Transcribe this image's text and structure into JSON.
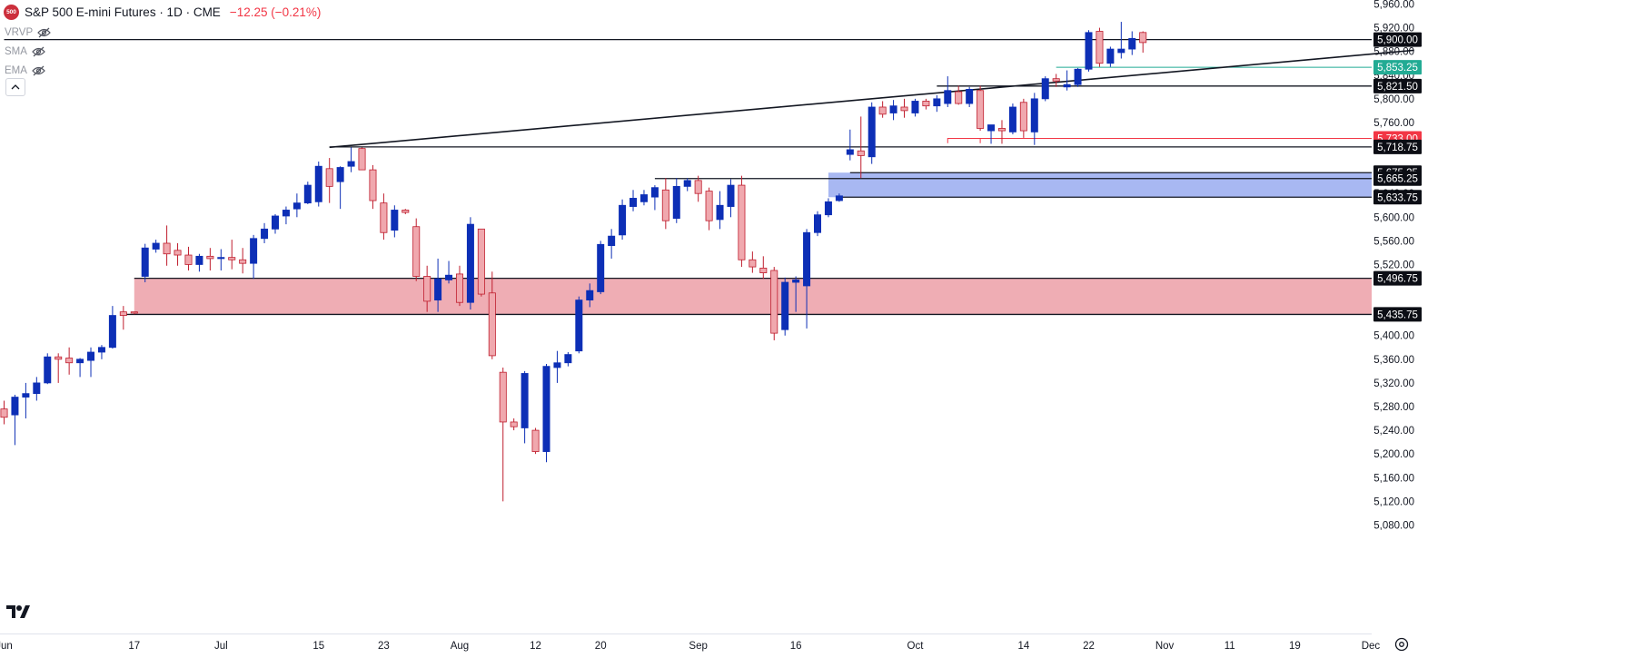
{
  "header": {
    "logo_text": "500",
    "title": "S&P 500 E-mini Futures · 1D · CME",
    "change": "−12.25 (−0.21%)"
  },
  "indicators": [
    {
      "label": "VRVP",
      "icon": "eye-off-icon"
    },
    {
      "label": "SMA",
      "icon": "eye-off-icon"
    },
    {
      "label": "EMA",
      "icon": "eye-off-icon"
    }
  ],
  "colors": {
    "up": "#0d2fb6",
    "down": "#f0a8ae",
    "down_border": "#bf1e2e",
    "resistance_zone": "#efadb4",
    "support_zone": "#a8b8f2",
    "last_price": "#22ab94",
    "red_level": "#f23645"
  },
  "chart_data": {
    "type": "candlestick",
    "instrument": "S&P 500 E-mini Futures",
    "timeframe": "1D",
    "exchange": "CME",
    "ylim": [
      5060,
      5980
    ],
    "y_ticks": [
      {
        "v": 5960,
        "label": "5,960.00"
      },
      {
        "v": 5920,
        "label": "5,920.00"
      },
      {
        "v": 5880,
        "label": "5,880.00"
      },
      {
        "v": 5840,
        "label": "5,840.00"
      },
      {
        "v": 5800,
        "label": "5,800.00"
      },
      {
        "v": 5760,
        "label": "5,760.00"
      },
      {
        "v": 5640,
        "label": "5,640.00"
      },
      {
        "v": 5600,
        "label": "5,600.00"
      },
      {
        "v": 5560,
        "label": "5,560.00"
      },
      {
        "v": 5520,
        "label": "5,520.00"
      },
      {
        "v": 5400,
        "label": "5,400.00"
      },
      {
        "v": 5360,
        "label": "5,360.00"
      },
      {
        "v": 5320,
        "label": "5,320.00"
      },
      {
        "v": 5280,
        "label": "5,280.00"
      },
      {
        "v": 5240,
        "label": "5,240.00"
      },
      {
        "v": 5200,
        "label": "5,200.00"
      },
      {
        "v": 5160,
        "label": "5,160.00"
      },
      {
        "v": 5120,
        "label": "5,120.00"
      },
      {
        "v": 5080,
        "label": "5,080.00"
      }
    ],
    "x_ticks": [
      {
        "i": 0,
        "label": "Jun"
      },
      {
        "i": 12,
        "label": "17"
      },
      {
        "i": 20,
        "label": "Jul"
      },
      {
        "i": 29,
        "label": "15"
      },
      {
        "i": 35,
        "label": "23"
      },
      {
        "i": 42,
        "label": "Aug"
      },
      {
        "i": 49,
        "label": "12"
      },
      {
        "i": 55,
        "label": "20"
      },
      {
        "i": 64,
        "label": "Sep"
      },
      {
        "i": 73,
        "label": "16"
      },
      {
        "i": 84,
        "label": "Oct"
      },
      {
        "i": 94,
        "label": "14"
      },
      {
        "i": 100,
        "label": "22"
      },
      {
        "i": 107,
        "label": "Nov"
      },
      {
        "i": 113,
        "label": "11"
      },
      {
        "i": 119,
        "label": "19"
      },
      {
        "i": 126,
        "label": "Dec"
      }
    ],
    "candles": [
      {
        "o": 5276,
        "h": 5290,
        "l": 5250,
        "c": 5262
      },
      {
        "o": 5266,
        "h": 5300,
        "l": 5215,
        "c": 5296
      },
      {
        "o": 5296,
        "h": 5320,
        "l": 5260,
        "c": 5302
      },
      {
        "o": 5302,
        "h": 5330,
        "l": 5290,
        "c": 5320
      },
      {
        "o": 5320,
        "h": 5370,
        "l": 5318,
        "c": 5364
      },
      {
        "o": 5364,
        "h": 5370,
        "l": 5320,
        "c": 5360
      },
      {
        "o": 5362,
        "h": 5380,
        "l": 5334,
        "c": 5354
      },
      {
        "o": 5354,
        "h": 5362,
        "l": 5330,
        "c": 5360
      },
      {
        "o": 5358,
        "h": 5380,
        "l": 5330,
        "c": 5372
      },
      {
        "o": 5372,
        "h": 5384,
        "l": 5360,
        "c": 5380
      },
      {
        "o": 5380,
        "h": 5450,
        "l": 5378,
        "c": 5434
      },
      {
        "o": 5440,
        "h": 5450,
        "l": 5410,
        "c": 5434
      },
      {
        "o": 5440,
        "h": 5440,
        "l": 5436,
        "c": 5438
      },
      {
        "o": 5500,
        "h": 5555,
        "l": 5490,
        "c": 5548
      },
      {
        "o": 5546,
        "h": 5562,
        "l": 5540,
        "c": 5556
      },
      {
        "o": 5556,
        "h": 5586,
        "l": 5518,
        "c": 5538
      },
      {
        "o": 5544,
        "h": 5556,
        "l": 5518,
        "c": 5536
      },
      {
        "o": 5536,
        "h": 5550,
        "l": 5510,
        "c": 5520
      },
      {
        "o": 5520,
        "h": 5538,
        "l": 5508,
        "c": 5534
      },
      {
        "o": 5534,
        "h": 5548,
        "l": 5510,
        "c": 5530
      },
      {
        "o": 5530,
        "h": 5546,
        "l": 5510,
        "c": 5532
      },
      {
        "o": 5532,
        "h": 5562,
        "l": 5512,
        "c": 5528
      },
      {
        "o": 5528,
        "h": 5548,
        "l": 5505,
        "c": 5522
      },
      {
        "o": 5522,
        "h": 5570,
        "l": 5496,
        "c": 5564
      },
      {
        "o": 5564,
        "h": 5590,
        "l": 5556,
        "c": 5580
      },
      {
        "o": 5580,
        "h": 5605,
        "l": 5572,
        "c": 5602
      },
      {
        "o": 5602,
        "h": 5618,
        "l": 5588,
        "c": 5612
      },
      {
        "o": 5614,
        "h": 5640,
        "l": 5600,
        "c": 5624
      },
      {
        "o": 5624,
        "h": 5660,
        "l": 5622,
        "c": 5654
      },
      {
        "o": 5626,
        "h": 5694,
        "l": 5618,
        "c": 5686
      },
      {
        "o": 5682,
        "h": 5700,
        "l": 5624,
        "c": 5652
      },
      {
        "o": 5660,
        "h": 5686,
        "l": 5614,
        "c": 5684
      },
      {
        "o": 5686,
        "h": 5718,
        "l": 5676,
        "c": 5694
      },
      {
        "o": 5716,
        "h": 5718,
        "l": 5680,
        "c": 5680
      },
      {
        "o": 5680,
        "h": 5688,
        "l": 5614,
        "c": 5628
      },
      {
        "o": 5624,
        "h": 5640,
        "l": 5562,
        "c": 5574
      },
      {
        "o": 5578,
        "h": 5620,
        "l": 5566,
        "c": 5612
      },
      {
        "o": 5612,
        "h": 5614,
        "l": 5605,
        "c": 5608
      },
      {
        "o": 5584,
        "h": 5598,
        "l": 5492,
        "c": 5500
      },
      {
        "o": 5500,
        "h": 5518,
        "l": 5440,
        "c": 5458
      },
      {
        "o": 5460,
        "h": 5530,
        "l": 5440,
        "c": 5496
      },
      {
        "o": 5494,
        "h": 5526,
        "l": 5488,
        "c": 5502
      },
      {
        "o": 5504,
        "h": 5518,
        "l": 5450,
        "c": 5456
      },
      {
        "o": 5456,
        "h": 5600,
        "l": 5444,
        "c": 5588
      },
      {
        "o": 5580,
        "h": 5580,
        "l": 5466,
        "c": 5470
      },
      {
        "o": 5472,
        "h": 5508,
        "l": 5360,
        "c": 5366
      },
      {
        "o": 5338,
        "h": 5346,
        "l": 5120,
        "c": 5254
      },
      {
        "o": 5254,
        "h": 5260,
        "l": 5240,
        "c": 5246
      },
      {
        "o": 5244,
        "h": 5340,
        "l": 5218,
        "c": 5336
      },
      {
        "o": 5240,
        "h": 5244,
        "l": 5200,
        "c": 5204
      },
      {
        "o": 5204,
        "h": 5352,
        "l": 5186,
        "c": 5348
      },
      {
        "o": 5346,
        "h": 5374,
        "l": 5320,
        "c": 5354
      },
      {
        "o": 5354,
        "h": 5372,
        "l": 5348,
        "c": 5368
      },
      {
        "o": 5374,
        "h": 5466,
        "l": 5370,
        "c": 5460
      },
      {
        "o": 5460,
        "h": 5488,
        "l": 5448,
        "c": 5476
      },
      {
        "o": 5474,
        "h": 5560,
        "l": 5470,
        "c": 5554
      },
      {
        "o": 5552,
        "h": 5580,
        "l": 5530,
        "c": 5568
      },
      {
        "o": 5570,
        "h": 5630,
        "l": 5562,
        "c": 5620
      },
      {
        "o": 5618,
        "h": 5646,
        "l": 5610,
        "c": 5632
      },
      {
        "o": 5626,
        "h": 5646,
        "l": 5620,
        "c": 5638
      },
      {
        "o": 5634,
        "h": 5654,
        "l": 5612,
        "c": 5650
      },
      {
        "o": 5646,
        "h": 5666,
        "l": 5580,
        "c": 5594
      },
      {
        "o": 5598,
        "h": 5666,
        "l": 5590,
        "c": 5652
      },
      {
        "o": 5652,
        "h": 5666,
        "l": 5644,
        "c": 5662
      },
      {
        "o": 5662,
        "h": 5670,
        "l": 5626,
        "c": 5640
      },
      {
        "o": 5644,
        "h": 5650,
        "l": 5578,
        "c": 5594
      },
      {
        "o": 5596,
        "h": 5644,
        "l": 5580,
        "c": 5620
      },
      {
        "o": 5618,
        "h": 5664,
        "l": 5600,
        "c": 5654
      },
      {
        "o": 5654,
        "h": 5670,
        "l": 5516,
        "c": 5528
      },
      {
        "o": 5528,
        "h": 5542,
        "l": 5506,
        "c": 5516
      },
      {
        "o": 5514,
        "h": 5534,
        "l": 5496,
        "c": 5506
      },
      {
        "o": 5510,
        "h": 5516,
        "l": 5392,
        "c": 5404
      },
      {
        "o": 5410,
        "h": 5498,
        "l": 5400,
        "c": 5490
      },
      {
        "o": 5490,
        "h": 5500,
        "l": 5440,
        "c": 5494
      },
      {
        "o": 5484,
        "h": 5580,
        "l": 5412,
        "c": 5574
      },
      {
        "o": 5574,
        "h": 5610,
        "l": 5568,
        "c": 5604
      },
      {
        "o": 5604,
        "h": 5632,
        "l": 5600,
        "c": 5626
      },
      {
        "o": 5628,
        "h": 5640,
        "l": 5626,
        "c": 5636
      },
      {
        "o": 5706,
        "h": 5748,
        "l": 5696,
        "c": 5714
      },
      {
        "o": 5712,
        "h": 5770,
        "l": 5666,
        "c": 5704
      },
      {
        "o": 5702,
        "h": 5794,
        "l": 5690,
        "c": 5786
      },
      {
        "o": 5786,
        "h": 5796,
        "l": 5768,
        "c": 5774
      },
      {
        "o": 5776,
        "h": 5798,
        "l": 5764,
        "c": 5788
      },
      {
        "o": 5786,
        "h": 5800,
        "l": 5768,
        "c": 5780
      },
      {
        "o": 5776,
        "h": 5800,
        "l": 5770,
        "c": 5796
      },
      {
        "o": 5796,
        "h": 5800,
        "l": 5782,
        "c": 5788
      },
      {
        "o": 5788,
        "h": 5806,
        "l": 5778,
        "c": 5800
      },
      {
        "o": 5792,
        "h": 5838,
        "l": 5786,
        "c": 5814
      },
      {
        "o": 5812,
        "h": 5822,
        "l": 5790,
        "c": 5792
      },
      {
        "o": 5792,
        "h": 5820,
        "l": 5786,
        "c": 5816
      },
      {
        "o": 5814,
        "h": 5822,
        "l": 5746,
        "c": 5750
      },
      {
        "o": 5746,
        "h": 5756,
        "l": 5724,
        "c": 5756
      },
      {
        "o": 5750,
        "h": 5764,
        "l": 5724,
        "c": 5746
      },
      {
        "o": 5744,
        "h": 5792,
        "l": 5740,
        "c": 5786
      },
      {
        "o": 5794,
        "h": 5800,
        "l": 5734,
        "c": 5746
      },
      {
        "o": 5744,
        "h": 5810,
        "l": 5722,
        "c": 5800
      },
      {
        "o": 5800,
        "h": 5838,
        "l": 5796,
        "c": 5834
      },
      {
        "o": 5834,
        "h": 5842,
        "l": 5820,
        "c": 5830
      },
      {
        "o": 5820,
        "h": 5848,
        "l": 5814,
        "c": 5824
      },
      {
        "o": 5824,
        "h": 5852,
        "l": 5820,
        "c": 5850
      },
      {
        "o": 5850,
        "h": 5916,
        "l": 5846,
        "c": 5912
      },
      {
        "o": 5914,
        "h": 5920,
        "l": 5854,
        "c": 5860
      },
      {
        "o": 5860,
        "h": 5888,
        "l": 5854,
        "c": 5884
      },
      {
        "o": 5878,
        "h": 5930,
        "l": 5868,
        "c": 5884
      },
      {
        "o": 5884,
        "h": 5914,
        "l": 5874,
        "c": 5902
      },
      {
        "o": 5912,
        "h": 5914,
        "l": 5878,
        "c": 5895
      }
    ],
    "zones": [
      {
        "name": "resistance-zone",
        "from_i": 12,
        "low": 5435.75,
        "high": 5496.75,
        "color": "#efadb4"
      },
      {
        "name": "support-zone",
        "from_i": 76,
        "low": 5633.75,
        "high": 5675.25,
        "color": "#a8b8f2"
      }
    ],
    "levels": [
      {
        "value": 5900.0,
        "label": "5,900.00",
        "from_i": 0,
        "style": "black"
      },
      {
        "value": 5853.25,
        "label": "5,853.25",
        "from_i": 97,
        "style": "teal"
      },
      {
        "value": 5821.5,
        "label": "5,821.50",
        "from_i": 86,
        "style": "black"
      },
      {
        "value": 5733.0,
        "label": "5,733.00",
        "from_i": 89,
        "style": "red"
      },
      {
        "value": 5718.75,
        "label": "5,718.75",
        "from_i": 30,
        "style": "black"
      },
      {
        "value": 5675.25,
        "label": "5,675.25",
        "from_i": 78,
        "style": "black"
      },
      {
        "value": 5665.25,
        "label": "5,665.25",
        "from_i": 60,
        "style": "black"
      },
      {
        "value": 5633.75,
        "label": "5,633.75",
        "from_i": 77,
        "style": "black"
      },
      {
        "value": 5496.75,
        "label": "5,496.75",
        "from_i": 12,
        "style": "black"
      },
      {
        "value": 5435.75,
        "label": "5,435.75",
        "from_i": 11,
        "style": "black"
      }
    ],
    "trendline": {
      "from": {
        "i": 30,
        "v": 5718
      },
      "to": {
        "i": 130,
        "v": 5882
      }
    },
    "bracket": {
      "from_i": 87,
      "to_i": 90,
      "value": 5733.0
    }
  }
}
